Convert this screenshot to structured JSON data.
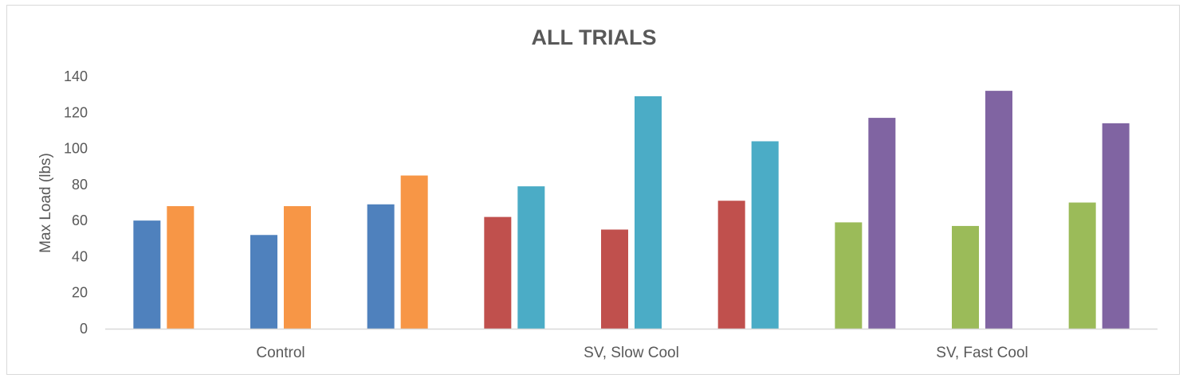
{
  "chart_data": {
    "type": "bar",
    "title": "ALL TRIALS",
    "xlabel": "",
    "ylabel": "Max Load (lbs)",
    "ylim": [
      0,
      140
    ],
    "yticks": [
      "0",
      "20",
      "40",
      "60",
      "80",
      "100",
      "120",
      "140"
    ],
    "grid": false,
    "legend": "none",
    "categories": [
      "Control",
      "SV, Slow Cool",
      "SV, Fast Cool"
    ],
    "bar_groups": [
      {
        "category_index": 0,
        "values": [
          60,
          68
        ],
        "colors": [
          "#4f81bd",
          "#f79646"
        ]
      },
      {
        "category_index": 0,
        "values": [
          52,
          68
        ],
        "colors": [
          "#4f81bd",
          "#f79646"
        ]
      },
      {
        "category_index": 0,
        "values": [
          69,
          85
        ],
        "colors": [
          "#4f81bd",
          "#f79646"
        ]
      },
      {
        "category_index": 1,
        "values": [
          62,
          79
        ],
        "colors": [
          "#c0504d",
          "#4bacc6"
        ]
      },
      {
        "category_index": 1,
        "values": [
          55,
          129
        ],
        "colors": [
          "#c0504d",
          "#4bacc6"
        ]
      },
      {
        "category_index": 1,
        "values": [
          71,
          104
        ],
        "colors": [
          "#c0504d",
          "#4bacc6"
        ]
      },
      {
        "category_index": 2,
        "values": [
          59,
          117
        ],
        "colors": [
          "#9bbb59",
          "#8064a2"
        ]
      },
      {
        "category_index": 2,
        "values": [
          57,
          132
        ],
        "colors": [
          "#9bbb59",
          "#8064a2"
        ]
      },
      {
        "category_index": 2,
        "values": [
          70,
          114
        ],
        "colors": [
          "#9bbb59",
          "#8064a2"
        ]
      }
    ],
    "axis_color": "#d9d9d9",
    "text_color": "#595959"
  }
}
